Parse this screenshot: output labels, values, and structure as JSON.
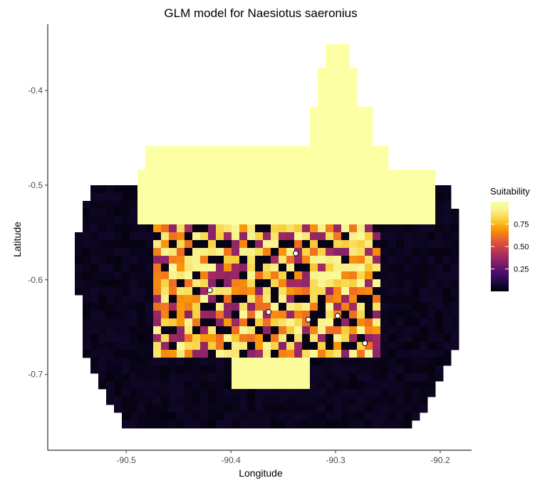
{
  "chart_data": {
    "type": "heatmap",
    "title": "GLM model for Naesiotus saeronius",
    "xlabel": "Longitude",
    "ylabel": "Latitude",
    "xlim": [
      -90.575,
      -90.17
    ],
    "ylim": [
      -0.78,
      -0.33
    ],
    "x_ticks": [
      -90.5,
      -90.4,
      -90.3,
      -90.2
    ],
    "y_ticks": [
      -0.4,
      -0.5,
      -0.6,
      -0.7
    ],
    "x_tick_labels": [
      "-90.5",
      "-90.4",
      "-90.3",
      "-90.2"
    ],
    "y_tick_labels": [
      "-0.4",
      "-0.5",
      "-0.6",
      "-0.7"
    ],
    "grid": false,
    "legend": {
      "title": "Suitability",
      "position": "right",
      "range": [
        0.0,
        1.0
      ],
      "breaks": [
        0.25,
        0.5,
        0.75
      ],
      "break_labels": [
        "0.25",
        "0.50",
        "0.75"
      ],
      "colormap": "inferno"
    },
    "occurrence_points": [
      {
        "lon": -90.42,
        "lat": -0.611
      },
      {
        "lon": -90.338,
        "lat": -0.572
      },
      {
        "lon": -90.364,
        "lat": -0.634
      },
      {
        "lon": -90.326,
        "lat": -0.642
      },
      {
        "lon": -90.298,
        "lat": -0.638
      },
      {
        "lon": -90.272,
        "lat": -0.667
      }
    ]
  }
}
